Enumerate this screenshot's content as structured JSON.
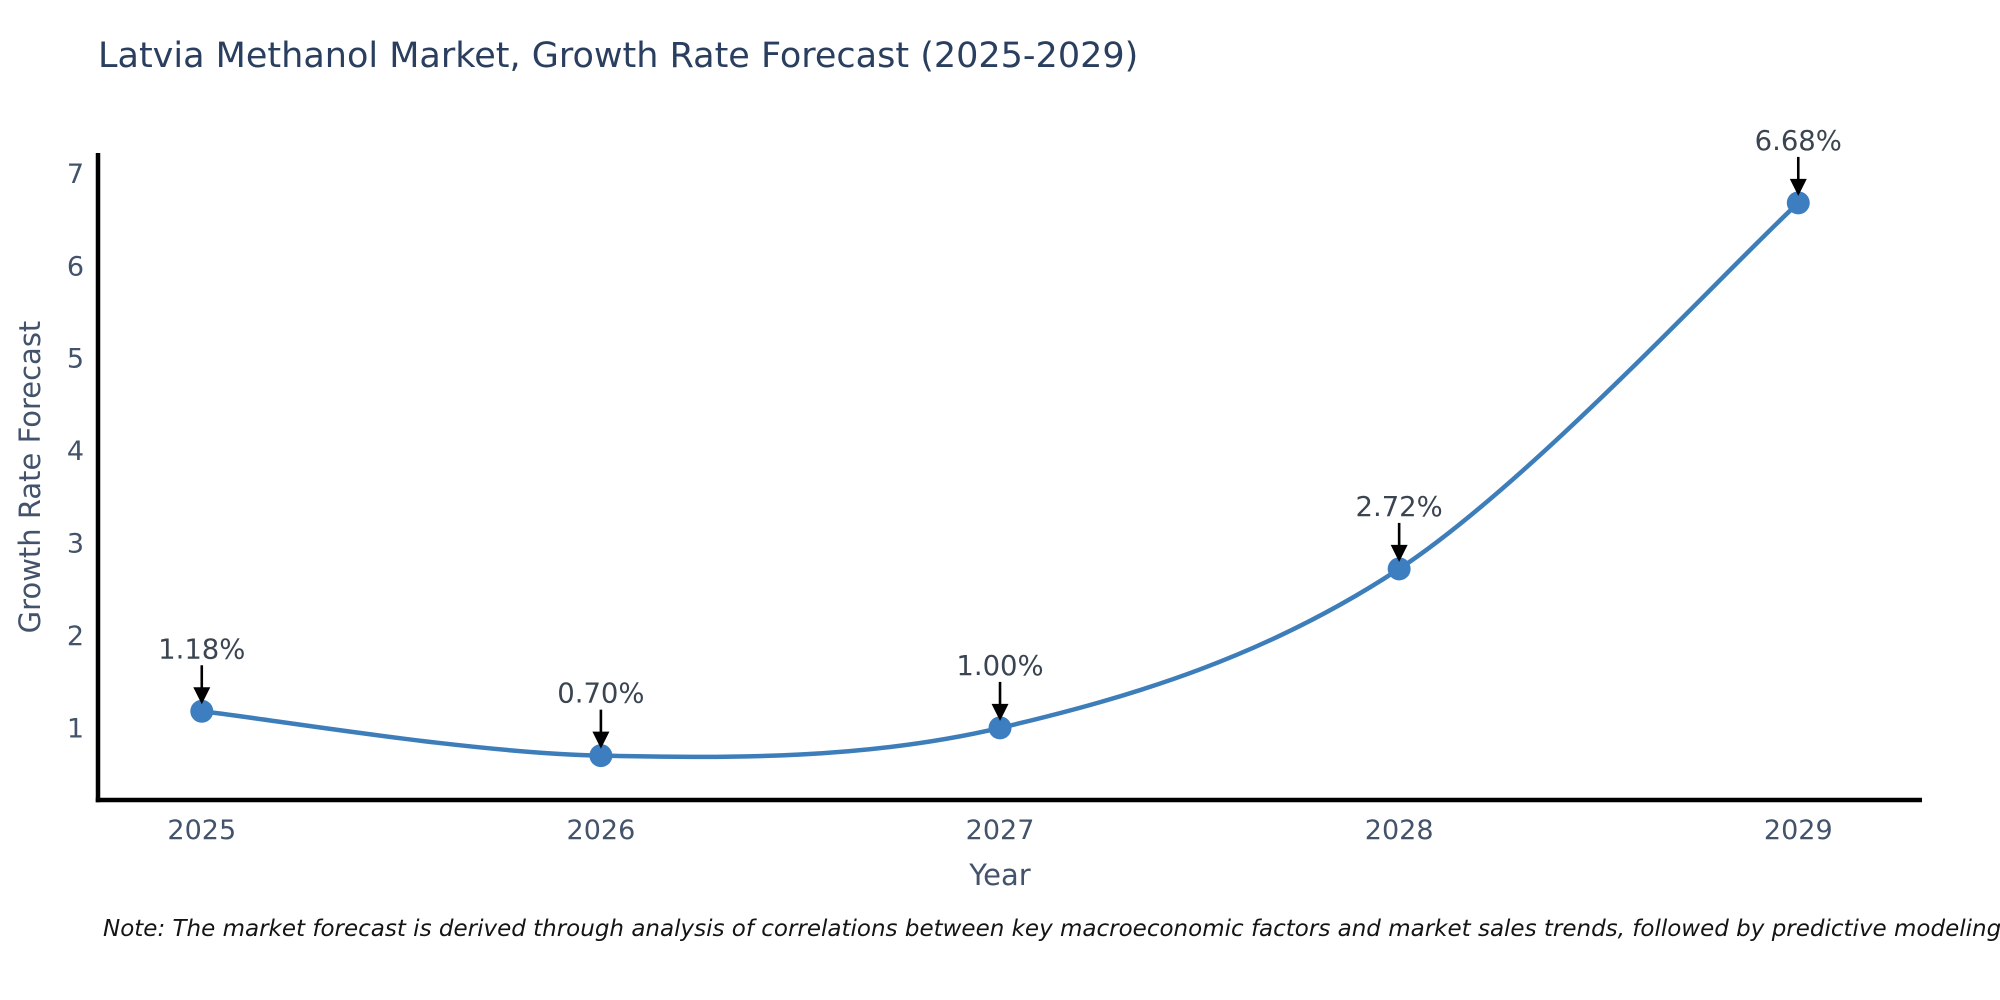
{
  "title": "Latvia Methanol Market, Growth Rate Forecast (2025-2029)",
  "note": "Note: The market forecast is derived through analysis of correlations between key macroeconomic factors and market sales trends, followed by predictive modeling to project future sales.",
  "chart_data": {
    "type": "line",
    "line_shape": "spline",
    "x": [
      2025,
      2026,
      2027,
      2028,
      2029
    ],
    "values": [
      1.18,
      0.7,
      1.0,
      2.72,
      6.68
    ],
    "point_labels": [
      "1.18%",
      "0.70%",
      "1.00%",
      "2.72%",
      "6.68%"
    ],
    "title": "Latvia Methanol Market, Growth Rate Forecast (2025-2029)",
    "xlabel": "Year",
    "ylabel": "Growth Rate Forecast",
    "yticks": [
      1,
      2,
      3,
      4,
      5,
      6,
      7
    ],
    "xtick_labels": [
      "2025",
      "2026",
      "2027",
      "2028",
      "2029"
    ],
    "ylim": [
      0.22,
      7.22
    ],
    "xlim": [
      2024.74,
      2029.31
    ],
    "grid": false,
    "legend": false,
    "annotation_style": "value-label-with-down-arrow",
    "colors": {
      "line": "#3d7eba",
      "marker": "#3c7ebf",
      "arrow": "#000000",
      "annotation_text": "#3b4552",
      "axis_text": "#42536b",
      "title_text": "#2a3f5f",
      "spine": "#000000",
      "background": "#ffffff"
    }
  }
}
